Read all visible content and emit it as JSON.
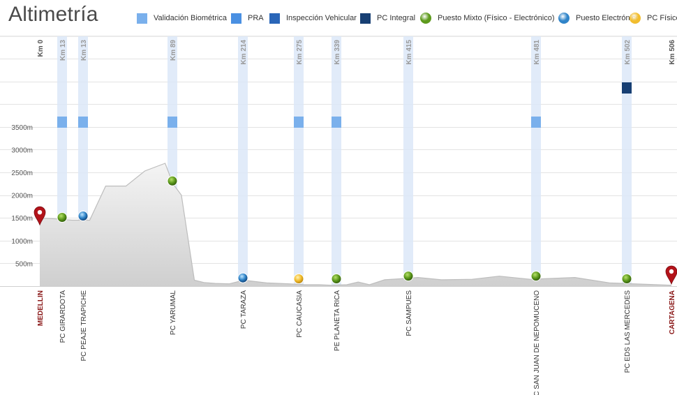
{
  "title": "Altimetría",
  "legend": [
    {
      "label": "Validación Biométrica",
      "shape": "square",
      "color": "#7ab0ec"
    },
    {
      "label": "PRA",
      "shape": "square",
      "color": "#4a90e2"
    },
    {
      "label": "Inspección Vehicular",
      "shape": "square",
      "color": "#2a66b8"
    },
    {
      "label": "PC Integral",
      "shape": "square",
      "color": "#173f73"
    },
    {
      "label": "Puesto Mixto (Físico - Electrónico)",
      "shape": "circle",
      "color": "#5d9a1c"
    },
    {
      "label": "Puesto Electrónico",
      "shape": "circle",
      "color": "#2f84c9"
    },
    {
      "label": "PC Físico",
      "shape": "circle",
      "color": "#f2bd2d"
    }
  ],
  "chart_data": {
    "type": "area",
    "title": "Altimetría",
    "xlabel": "",
    "ylabel": "",
    "xlim": [
      0,
      506
    ],
    "ylim": [
      0,
      4000
    ],
    "ytick_values": [
      500,
      1000,
      1500,
      2000,
      2500,
      3000,
      3500
    ],
    "ytick_labels": [
      "500m",
      "1000m",
      "1500m",
      "2000m",
      "2500m",
      "3000m",
      "3500m"
    ],
    "grid": true,
    "legend_position": "top",
    "profile": [
      {
        "km": 0,
        "alt": 1500
      },
      {
        "km": 12,
        "alt": 1470
      },
      {
        "km": 20,
        "alt": 1450
      },
      {
        "km": 32,
        "alt": 1450
      },
      {
        "km": 43,
        "alt": 2200
      },
      {
        "km": 57,
        "alt": 2200
      },
      {
        "km": 70,
        "alt": 2530
      },
      {
        "km": 84,
        "alt": 2700
      },
      {
        "km": 90,
        "alt": 2250
      },
      {
        "km": 105,
        "alt": 2000
      },
      {
        "km": 128,
        "alt": 130
      },
      {
        "km": 145,
        "alt": 80
      },
      {
        "km": 165,
        "alt": 60
      },
      {
        "km": 190,
        "alt": 50
      },
      {
        "km": 215,
        "alt": 130
      },
      {
        "km": 240,
        "alt": 70
      },
      {
        "km": 265,
        "alt": 50
      },
      {
        "km": 285,
        "alt": 30
      },
      {
        "km": 310,
        "alt": 30
      },
      {
        "km": 330,
        "alt": 20
      },
      {
        "km": 350,
        "alt": 30
      },
      {
        "km": 362,
        "alt": 90
      },
      {
        "km": 374,
        "alt": 30
      },
      {
        "km": 390,
        "alt": 140
      },
      {
        "km": 405,
        "alt": 160
      },
      {
        "km": 420,
        "alt": 190
      },
      {
        "km": 432,
        "alt": 140
      },
      {
        "km": 448,
        "alt": 150
      },
      {
        "km": 462,
        "alt": 220
      },
      {
        "km": 478,
        "alt": 150
      },
      {
        "km": 490,
        "alt": 190
      },
      {
        "km": 498,
        "alt": 70
      },
      {
        "km": 506,
        "alt": 20
      }
    ],
    "stations": [
      {
        "km": 0,
        "km_label": "Km 0",
        "name": "MEDELLIN",
        "marker": "pin",
        "alt": 1500,
        "service": null,
        "endpoint": true
      },
      {
        "km": 13,
        "km_label": "Km 13",
        "name": "PC GIRARDOTA",
        "marker": "mixto",
        "alt": 1450,
        "service": "Validación Biométrica",
        "endpoint": false
      },
      {
        "km": 13,
        "km_label": "Km 13",
        "name": "PC PEAJE TRAPICHE",
        "marker": "electronico",
        "alt": 1480,
        "service": "Validación Biométrica",
        "endpoint": false
      },
      {
        "km": 89,
        "km_label": "Km 89",
        "name": "PC YARUMAL",
        "marker": "mixto",
        "alt": 2250,
        "service": "Validación Biométrica",
        "endpoint": false
      },
      {
        "km": 214,
        "km_label": "Km 214",
        "name": "PC TARAZA",
        "marker": "electronico",
        "alt": 120,
        "service": null,
        "endpoint": false
      },
      {
        "km": 275,
        "km_label": "Km 275",
        "name": "PC CAUCASIA",
        "marker": "fisico",
        "alt": 100,
        "service": "Validación Biométrica",
        "endpoint": false
      },
      {
        "km": 339,
        "km_label": "Km 339",
        "name": "PE PLANETA RICA",
        "marker": "mixto",
        "alt": 100,
        "service": "Validación Biométrica",
        "endpoint": false
      },
      {
        "km": 415,
        "km_label": "Km 415",
        "name": "PC SAMPUES",
        "marker": "mixto",
        "alt": 160,
        "service": null,
        "endpoint": false
      },
      {
        "km": 481,
        "km_label": "Km 481",
        "name": "PC SAN JUAN DE NEPOMUCENO",
        "marker": "mixto",
        "alt": 160,
        "service": "Validación Biométrica",
        "endpoint": false
      },
      {
        "km": 502,
        "km_label": "Km 502",
        "name": "PC EDS LAS MERCEDES",
        "marker": "mixto",
        "alt": 100,
        "service": "PC Integral",
        "endpoint": false
      },
      {
        "km": 506,
        "km_label": "Km 506",
        "name": "CARTAGENA",
        "marker": "pin",
        "alt": 200,
        "service": null,
        "endpoint": true
      }
    ]
  }
}
